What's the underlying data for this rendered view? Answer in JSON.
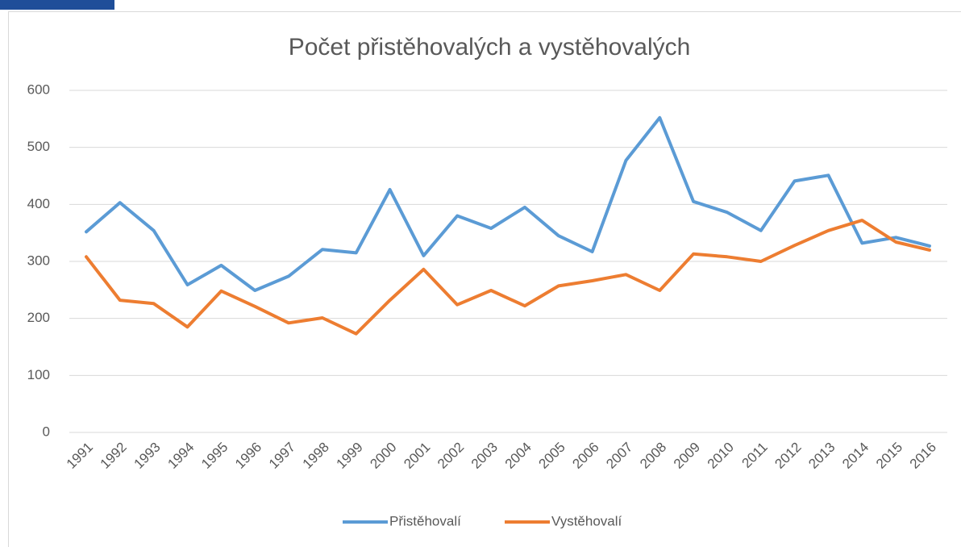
{
  "chart_data": {
    "type": "line",
    "title": "Počet přistěhovalých a vystěhovalých",
    "categories": [
      "1991",
      "1992",
      "1993",
      "1994",
      "1995",
      "1996",
      "1997",
      "1998",
      "1999",
      "2000",
      "2001",
      "2002",
      "2003",
      "2004",
      "2005",
      "2006",
      "2007",
      "2008",
      "2009",
      "2010",
      "2011",
      "2012",
      "2013",
      "2014",
      "2015",
      "2016"
    ],
    "series": [
      {
        "name": "Přistěhovalí",
        "color": "#5b9bd5",
        "values": [
          352,
          403,
          354,
          259,
          293,
          249,
          274,
          321,
          315,
          426,
          310,
          380,
          358,
          395,
          345,
          317,
          477,
          552,
          405,
          386,
          354,
          441,
          451,
          332,
          342,
          327
        ]
      },
      {
        "name": "Vystěhovalí",
        "color": "#ed7d31",
        "values": [
          308,
          232,
          226,
          185,
          248,
          221,
          192,
          201,
          173,
          232,
          286,
          224,
          249,
          222,
          257,
          266,
          277,
          249,
          313,
          308,
          300,
          328,
          354,
          372,
          334,
          320
        ]
      }
    ],
    "ylim": [
      0,
      600
    ],
    "yticks": [
      0,
      100,
      200,
      300,
      400,
      500,
      600
    ],
    "grid": true,
    "legend": "bottom"
  }
}
